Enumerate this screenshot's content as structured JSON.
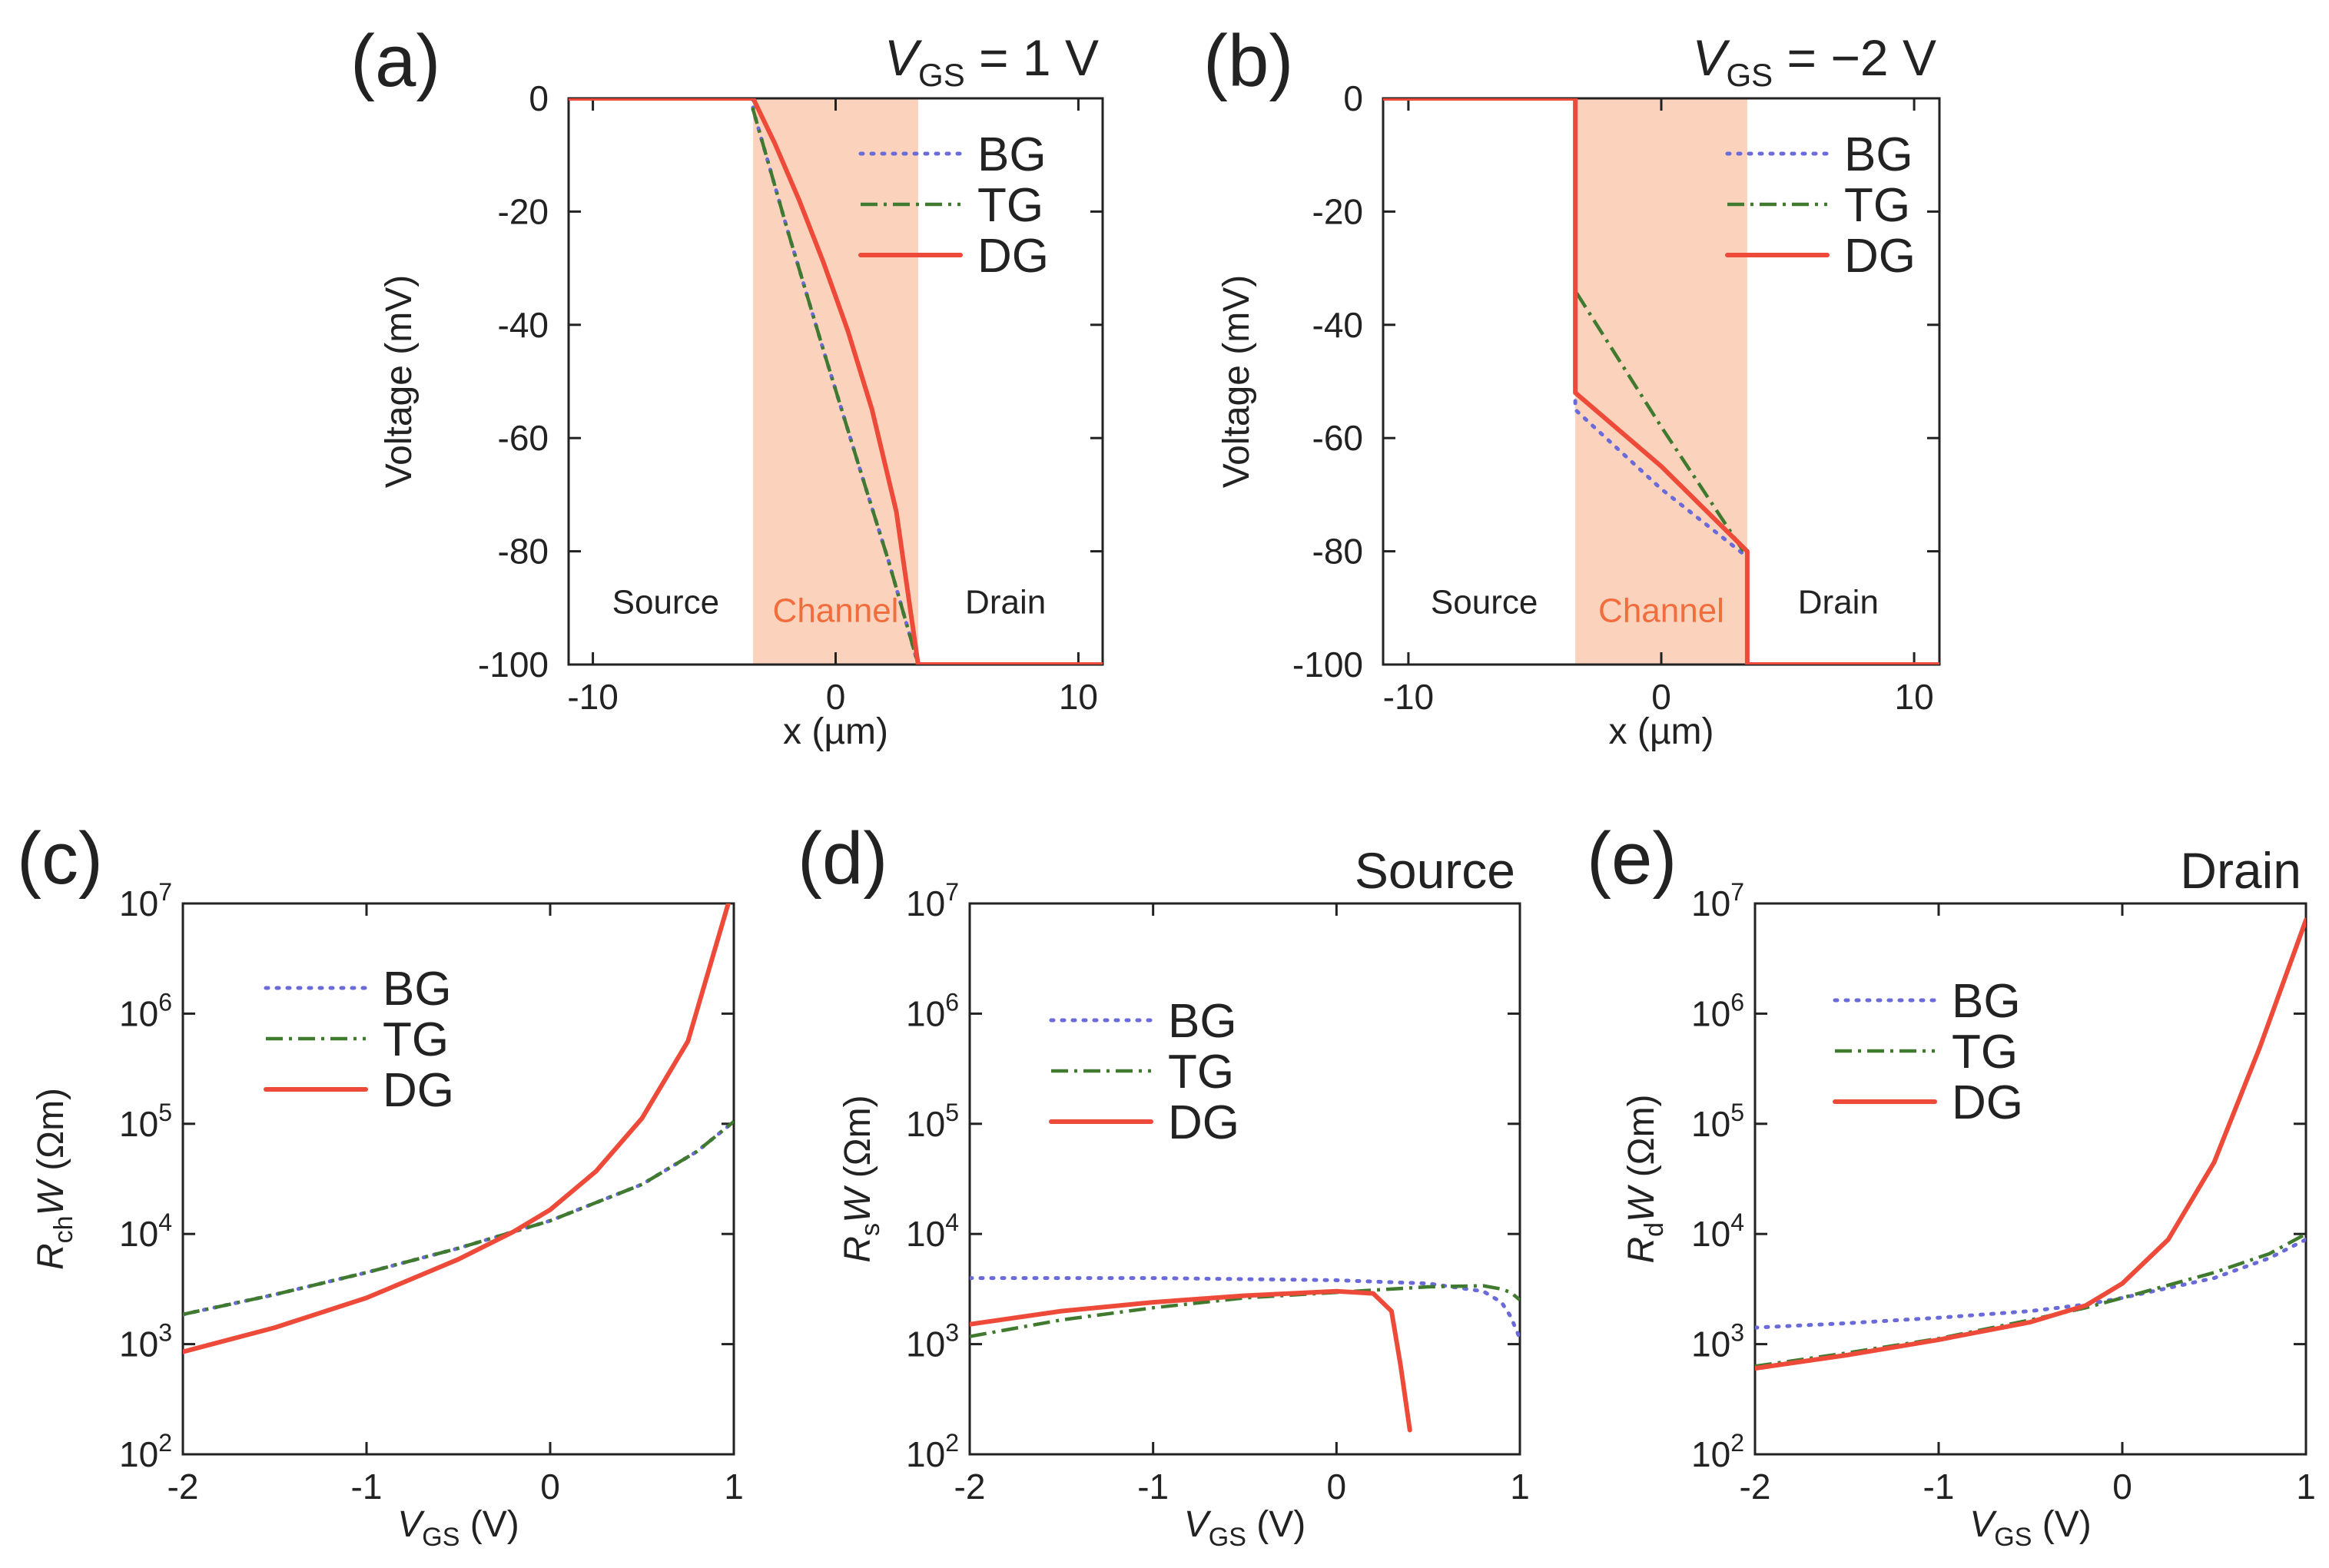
{
  "colors": {
    "BG": "#6a6ad8",
    "TG": "#3f7a2e",
    "DG": "#ee4a3a",
    "channel_fill": "#fbd3bd",
    "channel_text": "#f26d3d",
    "axis": "#222222"
  },
  "legend": [
    "BG",
    "TG",
    "DG"
  ],
  "chart_data": [
    {
      "id": "a",
      "type": "line",
      "panel_label": "(a)",
      "title": {
        "v": "V",
        "sub": "GS",
        "rest": " = 1 V"
      },
      "xlabel": "x (µm)",
      "ylabel": "Voltage (mV)",
      "xlim": [
        -11,
        11
      ],
      "ylim": [
        -100,
        0
      ],
      "xticks": [
        -10,
        0,
        10
      ],
      "xtick_labels": [
        "-10",
        "0",
        "10"
      ],
      "yticks": [
        0,
        -20,
        -40,
        -60,
        -80,
        -100
      ],
      "ytick_labels": [
        "0",
        "-20",
        "-40",
        "-60",
        "-80",
        "-100"
      ],
      "yscale": "linear",
      "channel": [
        -3.4,
        3.4
      ],
      "regions": [
        {
          "label": "Source",
          "x": -7,
          "y": -91
        },
        {
          "label": "Channel",
          "x": 0,
          "y": -92.5,
          "channel": true
        },
        {
          "label": "Drain",
          "x": 7,
          "y": -91
        }
      ],
      "legend_position": "top-right",
      "series": [
        {
          "name": "BG",
          "x": [
            -11,
            -3.4,
            -3.4,
            -2,
            -0.5,
            1,
            2.2,
            3.4,
            3.4,
            11
          ],
          "y": [
            0,
            0,
            -2,
            -23,
            -44.5,
            -65.5,
            -82,
            -100,
            -100,
            -100
          ]
        },
        {
          "name": "TG",
          "x": [
            -11,
            -3.4,
            -3.4,
            -2,
            -0.5,
            1,
            2.2,
            3.4,
            3.4,
            11
          ],
          "y": [
            0,
            0,
            -2,
            -23,
            -44.5,
            -65.5,
            -82,
            -100,
            -100,
            -100
          ]
        },
        {
          "name": "DG",
          "x": [
            -11,
            -3.4,
            -2.5,
            -1.5,
            -0.5,
            0.5,
            1.5,
            2.5,
            3.4,
            11
          ],
          "y": [
            0,
            0,
            -8,
            -18,
            -29,
            -41,
            -55,
            -73,
            -100,
            -100
          ]
        }
      ]
    },
    {
      "id": "b",
      "type": "line",
      "panel_label": "(b)",
      "title": {
        "v": "V",
        "sub": "GS",
        "rest": " = −2 V"
      },
      "xlabel": "x (µm)",
      "ylabel": "Voltage (mV)",
      "xlim": [
        -11,
        11
      ],
      "ylim": [
        -100,
        0
      ],
      "xticks": [
        -10,
        0,
        10
      ],
      "xtick_labels": [
        "-10",
        "0",
        "10"
      ],
      "yticks": [
        0,
        -20,
        -40,
        -60,
        -80,
        -100
      ],
      "ytick_labels": [
        "0",
        "-20",
        "-40",
        "-60",
        "-80",
        "-100"
      ],
      "yscale": "linear",
      "channel": [
        -3.4,
        3.4
      ],
      "regions": [
        {
          "label": "Source",
          "x": -7,
          "y": -91
        },
        {
          "label": "Channel",
          "x": 0,
          "y": -92.5,
          "channel": true
        },
        {
          "label": "Drain",
          "x": 7,
          "y": -91
        }
      ],
      "legend_position": "top-right",
      "series": [
        {
          "name": "BG",
          "x": [
            -11,
            -3.4,
            -3.4,
            0,
            3.4,
            3.4,
            11
          ],
          "y": [
            0,
            0,
            -55,
            -69,
            -81,
            -100,
            -100
          ]
        },
        {
          "name": "TG",
          "x": [
            -11,
            -3.4,
            -3.4,
            0,
            3.4,
            3.4,
            11
          ],
          "y": [
            0,
            0,
            -34,
            -58,
            -81,
            -100,
            -100
          ]
        },
        {
          "name": "DG",
          "x": [
            -11,
            -3.4,
            -3.4,
            0,
            3.4,
            3.4,
            11
          ],
          "y": [
            0,
            0,
            -52,
            -65,
            -80,
            -100,
            -100
          ]
        }
      ]
    },
    {
      "id": "c",
      "type": "line",
      "panel_label": "(c)",
      "title": null,
      "xlabel": "(V)",
      "xlabel_var": {
        "v": "V",
        "sub": "GS"
      },
      "ylabel": "(Ωm)",
      "ylabel_var": {
        "v": "R",
        "sub": "ch",
        "post": "W"
      },
      "xlim": [
        -2,
        1
      ],
      "ylim": [
        2,
        7
      ],
      "xticks": [
        -2,
        -1,
        0,
        1
      ],
      "xtick_labels": [
        "-2",
        "-1",
        "0",
        "1"
      ],
      "yticks": [
        2,
        3,
        4,
        5,
        6,
        7
      ],
      "ytick_labels": [
        "2",
        "3",
        "4",
        "5",
        "6",
        "7"
      ],
      "ytick_base": "10",
      "yscale": "log10 (values are exponents)",
      "legend_position": "top-left",
      "series": [
        {
          "name": "BG",
          "x": [
            -2,
            -1.5,
            -1,
            -0.5,
            -0.2,
            0,
            0.5,
            0.8,
            1
          ],
          "y": [
            3.27,
            3.45,
            3.65,
            3.87,
            4.02,
            4.12,
            4.45,
            4.75,
            5.02
          ]
        },
        {
          "name": "TG",
          "x": [
            -2,
            -1.5,
            -1,
            -0.5,
            -0.2,
            0,
            0.5,
            0.8,
            1
          ],
          "y": [
            3.27,
            3.45,
            3.65,
            3.87,
            4.02,
            4.12,
            4.45,
            4.75,
            5.02
          ]
        },
        {
          "name": "DG",
          "x": [
            -2,
            -1.5,
            -1,
            -0.5,
            -0.2,
            0,
            0.25,
            0.5,
            0.75,
            0.97
          ],
          "y": [
            2.93,
            3.15,
            3.42,
            3.77,
            4.02,
            4.22,
            4.57,
            5.05,
            5.75,
            7.0
          ]
        }
      ]
    },
    {
      "id": "d",
      "type": "line",
      "panel_label": "(d)",
      "title": {
        "v": "",
        "sub": "",
        "rest": "Source"
      },
      "xlabel": "(V)",
      "xlabel_var": {
        "v": "V",
        "sub": "GS"
      },
      "ylabel": "(Ωm)",
      "ylabel_var": {
        "v": "R",
        "sub": "s",
        "post": "W"
      },
      "xlim": [
        -2,
        1
      ],
      "ylim": [
        2,
        7
      ],
      "xticks": [
        -2,
        -1,
        0,
        1
      ],
      "xtick_labels": [
        "-2",
        "-1",
        "0",
        "1"
      ],
      "yticks": [
        2,
        3,
        4,
        5,
        6,
        7
      ],
      "ytick_labels": [
        "2",
        "3",
        "4",
        "5",
        "6",
        "7"
      ],
      "ytick_base": "10",
      "yscale": "log10 (values are exponents)",
      "legend_position": "top-left",
      "series": [
        {
          "name": "BG",
          "x": [
            -2,
            -1,
            0,
            0.5,
            0.8,
            0.9,
            0.95,
            1.0
          ],
          "y": [
            3.6,
            3.6,
            3.58,
            3.55,
            3.48,
            3.38,
            3.25,
            3.05
          ]
        },
        {
          "name": "TG",
          "x": [
            -2,
            -1.5,
            -1,
            -0.5,
            0,
            0.5,
            0.8,
            0.9,
            0.95,
            1.0
          ],
          "y": [
            3.07,
            3.22,
            3.33,
            3.42,
            3.47,
            3.52,
            3.53,
            3.5,
            3.47,
            3.4
          ]
        },
        {
          "name": "DG",
          "x": [
            -2,
            -1.5,
            -1,
            -0.5,
            0,
            0.2,
            0.3,
            0.35,
            0.4
          ],
          "y": [
            3.18,
            3.3,
            3.38,
            3.44,
            3.48,
            3.46,
            3.3,
            2.8,
            2.22
          ]
        }
      ]
    },
    {
      "id": "e",
      "type": "line",
      "panel_label": "(e)",
      "title": {
        "v": "",
        "sub": "",
        "rest": "Drain"
      },
      "xlabel": "(V)",
      "xlabel_var": {
        "v": "V",
        "sub": "GS"
      },
      "ylabel": "(Ωm)",
      "ylabel_var": {
        "v": "R",
        "sub": "d",
        "post": "W"
      },
      "xlim": [
        -2,
        1
      ],
      "ylim": [
        2,
        7
      ],
      "xticks": [
        -2,
        -1,
        0,
        1
      ],
      "xtick_labels": [
        "-2",
        "-1",
        "0",
        "1"
      ],
      "yticks": [
        2,
        3,
        4,
        5,
        6,
        7
      ],
      "ytick_labels": [
        "2",
        "3",
        "4",
        "5",
        "6",
        "7"
      ],
      "ytick_base": "10",
      "yscale": "log10 (values are exponents)",
      "legend_position": "top-left",
      "series": [
        {
          "name": "BG",
          "x": [
            -2,
            -1.5,
            -1,
            -0.5,
            -0.2,
            0,
            0.5,
            0.8,
            1
          ],
          "y": [
            3.15,
            3.19,
            3.24,
            3.3,
            3.36,
            3.42,
            3.6,
            3.78,
            3.95
          ]
        },
        {
          "name": "TG",
          "x": [
            -2,
            -1.5,
            -1,
            -0.5,
            -0.2,
            0,
            0.5,
            0.8,
            1
          ],
          "y": [
            2.8,
            2.92,
            3.05,
            3.22,
            3.33,
            3.42,
            3.65,
            3.82,
            4.0
          ]
        },
        {
          "name": "DG",
          "x": [
            -2,
            -1.5,
            -1,
            -0.5,
            -0.2,
            0,
            0.25,
            0.5,
            0.75,
            1.0
          ],
          "y": [
            2.78,
            2.9,
            3.04,
            3.2,
            3.35,
            3.55,
            3.95,
            4.65,
            5.7,
            6.85
          ]
        }
      ]
    }
  ]
}
